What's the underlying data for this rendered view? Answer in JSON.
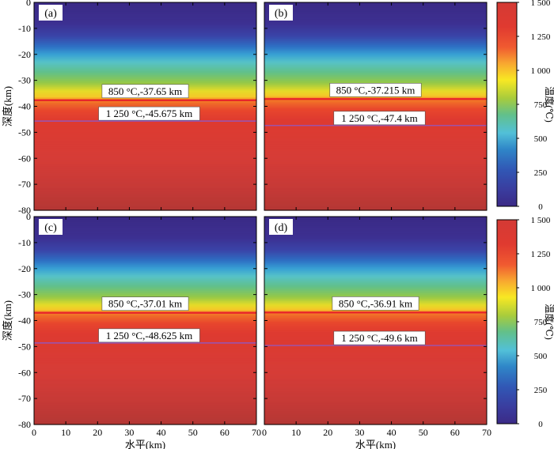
{
  "chart_data": [
    {
      "type": "heatmap",
      "panel": "(a)",
      "x_range": [
        0,
        70
      ],
      "y_range": [
        -80,
        0
      ],
      "isotherms": [
        {
          "temp": 850,
          "depth": -37.65,
          "label": "850 °C,-37.65 km"
        },
        {
          "temp": 1250,
          "depth": -45.675,
          "label": "1 250 °C,-45.675 km"
        }
      ]
    },
    {
      "type": "heatmap",
      "panel": "(b)",
      "x_range": [
        0,
        70
      ],
      "y_range": [
        -80,
        0
      ],
      "isotherms": [
        {
          "temp": 850,
          "depth": -37.215,
          "label": "850 °C,-37.215 km"
        },
        {
          "temp": 1250,
          "depth": -47.4,
          "label": "1 250 °C,-47.4 km"
        }
      ]
    },
    {
      "type": "heatmap",
      "panel": "(c)",
      "x_range": [
        0,
        70
      ],
      "y_range": [
        -80,
        0
      ],
      "isotherms": [
        {
          "temp": 850,
          "depth": -37.01,
          "label": "850 °C,-37.01 km"
        },
        {
          "temp": 1250,
          "depth": -48.625,
          "label": "1 250 °C,-48.625 km"
        }
      ]
    },
    {
      "type": "heatmap",
      "panel": "(d)",
      "x_range": [
        0,
        70
      ],
      "y_range": [
        -80,
        0
      ],
      "isotherms": [
        {
          "temp": 850,
          "depth": -36.91,
          "label": "850 °C,-36.91 km"
        },
        {
          "temp": 1250,
          "depth": -49.6,
          "label": "1 250 °C,-49.6 km"
        }
      ]
    }
  ],
  "axes": {
    "ylabel": "深度(km)",
    "xlabel": "水平(km)",
    "yticks": [
      "0",
      "-10",
      "-20",
      "-30",
      "-40",
      "-50",
      "-60",
      "-70",
      "-80"
    ],
    "xticks": [
      "0",
      "10",
      "20",
      "30",
      "40",
      "50",
      "60",
      "70"
    ]
  },
  "colorbar": {
    "label": "温度(℃)",
    "range": [
      0,
      1500
    ],
    "ticks": [
      "0",
      "250",
      "500",
      "750",
      "1 000",
      "1 250",
      "1 500"
    ],
    "colors": [
      "#3b2a86",
      "#3f43a6",
      "#2f86c8",
      "#52c0d8",
      "#62c08a",
      "#a8cc3c",
      "#f8e823",
      "#f8a830",
      "#f05a30",
      "#e03a30",
      "#d43a35",
      "#a83530"
    ]
  },
  "isotherm_colors": {
    "t850": "#e8262a",
    "t1250": "#8a5ad0"
  }
}
